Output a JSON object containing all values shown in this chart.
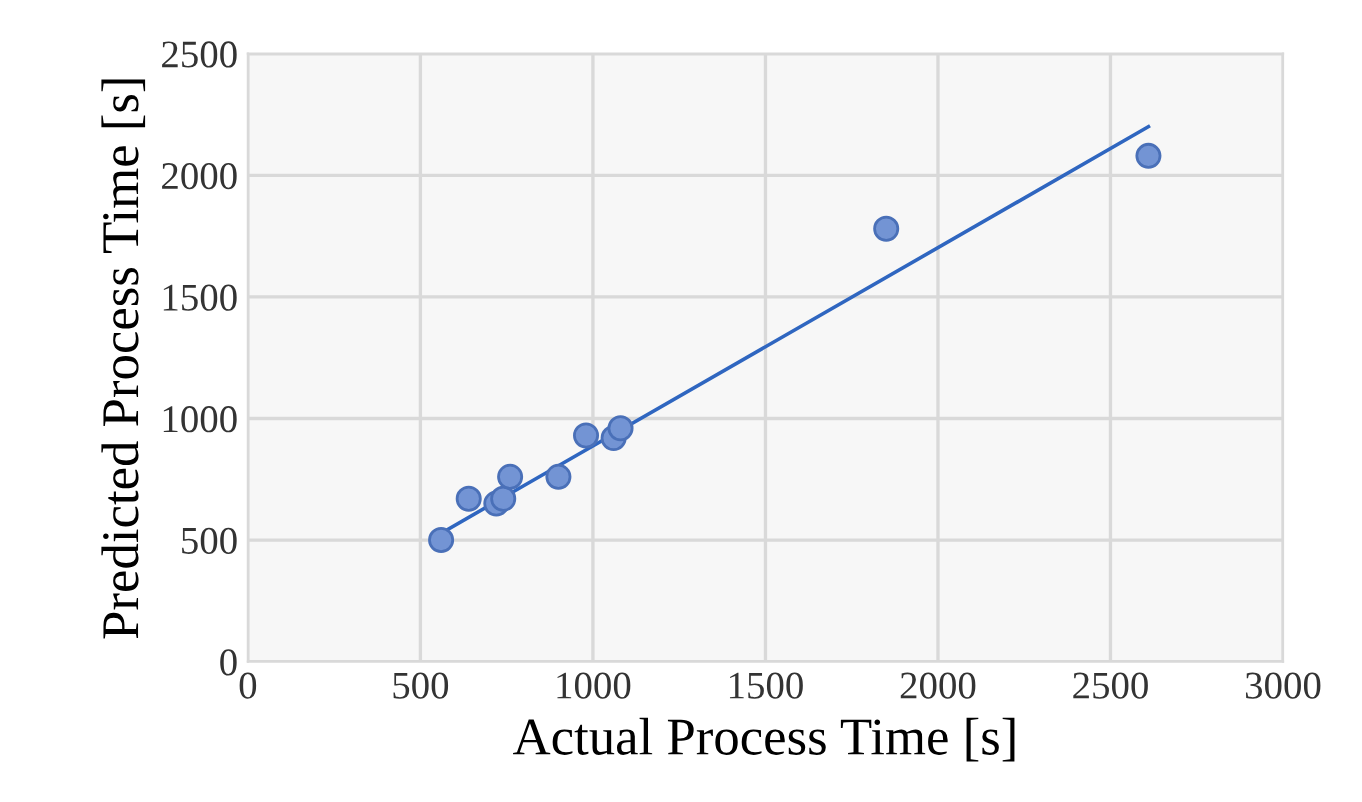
{
  "chart_data": {
    "type": "scatter",
    "xlabel": "Actual Process Time [s]",
    "ylabel": "Predicted Process Time [s]",
    "xlim": [
      0,
      3000
    ],
    "xticks": [
      0,
      500,
      1000,
      1500,
      2000,
      2500,
      3000
    ],
    "ylim": [
      0,
      2500
    ],
    "yticks": [
      0,
      500,
      1000,
      1500,
      2000,
      2500
    ],
    "grid": true,
    "series": [
      {
        "color": "#7394d4",
        "marker": "circle",
        "x": [
          560,
          640,
          720,
          740,
          760,
          900,
          980,
          1060,
          1080,
          1850,
          2610
        ],
        "values": [
          500,
          670,
          650,
          670,
          760,
          760,
          930,
          920,
          960,
          1780,
          2080
        ]
      },
      {
        "type": "line",
        "color": "#2f66c0",
        "marker": "none",
        "x": [
          550,
          2610
        ],
        "values": [
          520,
          2200
        ]
      }
    ]
  }
}
